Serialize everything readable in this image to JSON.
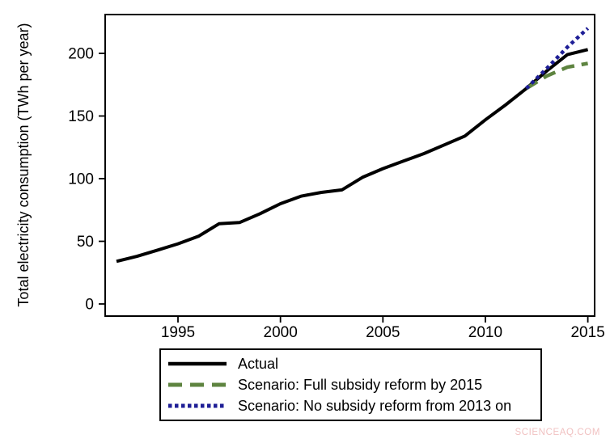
{
  "watermark": "SCIENCEAQ.COM",
  "chart_data": {
    "type": "line",
    "title": "",
    "xlabel": "",
    "ylabel": "Total electricity consumption (TWh per year)",
    "x_ticks": [
      1995,
      2000,
      2005,
      2010,
      2015
    ],
    "y_ticks": [
      0,
      50,
      100,
      150,
      200
    ],
    "x_range": [
      1991.5,
      2015.4
    ],
    "y_range": [
      -10,
      231
    ],
    "grid": false,
    "legend_position": "below-chart-boxed",
    "series": [
      {
        "name": "Actual",
        "style": "solid",
        "color": "#000000",
        "x": [
          1992,
          1993,
          1994,
          1995,
          1996,
          1997,
          1998,
          1999,
          2000,
          2001,
          2002,
          2003,
          2004,
          2005,
          2006,
          2007,
          2008,
          2009,
          2010,
          2011,
          2012,
          2013,
          2014,
          2015
        ],
        "values": [
          34,
          38,
          43,
          48,
          54,
          64,
          65,
          72,
          80,
          86,
          89,
          91,
          101,
          108,
          114,
          120,
          127,
          134,
          147,
          159,
          172,
          186,
          199,
          203
        ]
      },
      {
        "name": "Scenario: Full subsidy reform by 2015",
        "style": "dashed",
        "color": "#5e8440",
        "x": [
          2012,
          2013,
          2014,
          2015
        ],
        "values": [
          172,
          182,
          189,
          192
        ]
      },
      {
        "name": "Scenario: No subsidy reform from 2013 on",
        "style": "dotted",
        "color": "#1e1e96",
        "x": [
          2012,
          2013,
          2014,
          2015
        ],
        "values": [
          172,
          188,
          205,
          220
        ]
      }
    ]
  }
}
